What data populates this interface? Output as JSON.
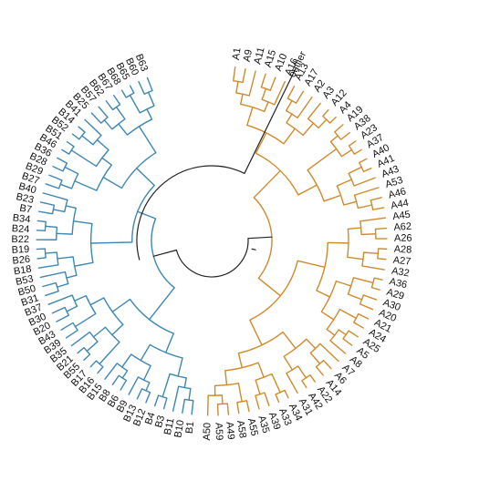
{
  "tree": {
    "colors": {
      "group_a": "#d08a2c",
      "group_b": "#3d87b5",
      "root": "#222222",
      "outlier": "#222222"
    },
    "outlier_label": "outlier",
    "group_a_leaves": [
      "A1",
      "A9",
      "A11",
      "A15",
      "A10",
      "A16",
      "A13",
      "A17",
      "A2",
      "A3",
      "A12",
      "A4",
      "A19",
      "A38",
      "A23",
      "A37",
      "A40",
      "A41",
      "A43",
      "A53",
      "A46",
      "A44",
      "A45",
      "A62",
      "A26",
      "A28",
      "A27",
      "A32",
      "A36",
      "A29",
      "A30",
      "A20",
      "A21",
      "A24",
      "A25",
      "A5",
      "A8",
      "A7",
      "A6",
      "A14",
      "A22",
      "A42",
      "A31",
      "A34",
      "A33",
      "A39",
      "A35",
      "A55",
      "A58",
      "A49",
      "A59",
      "A50"
    ],
    "group_b_leaves": [
      "B1",
      "B10",
      "B11",
      "B3",
      "B4",
      "B12",
      "B13",
      "B9",
      "B6",
      "B8",
      "B15",
      "B16",
      "B17",
      "B55",
      "B21",
      "B35",
      "B39",
      "B43",
      "B20",
      "B30",
      "B37",
      "B31",
      "B50",
      "B53",
      "B18",
      "B26",
      "B19",
      "B22",
      "B24",
      "B34",
      "B7",
      "B23",
      "B40",
      "B27",
      "B29",
      "B28",
      "B36",
      "B46",
      "B51",
      "B52",
      "B14",
      "B41",
      "B25",
      "B57",
      "B62",
      "B67",
      "B68",
      "B65",
      "B60",
      "B63"
    ]
  }
}
